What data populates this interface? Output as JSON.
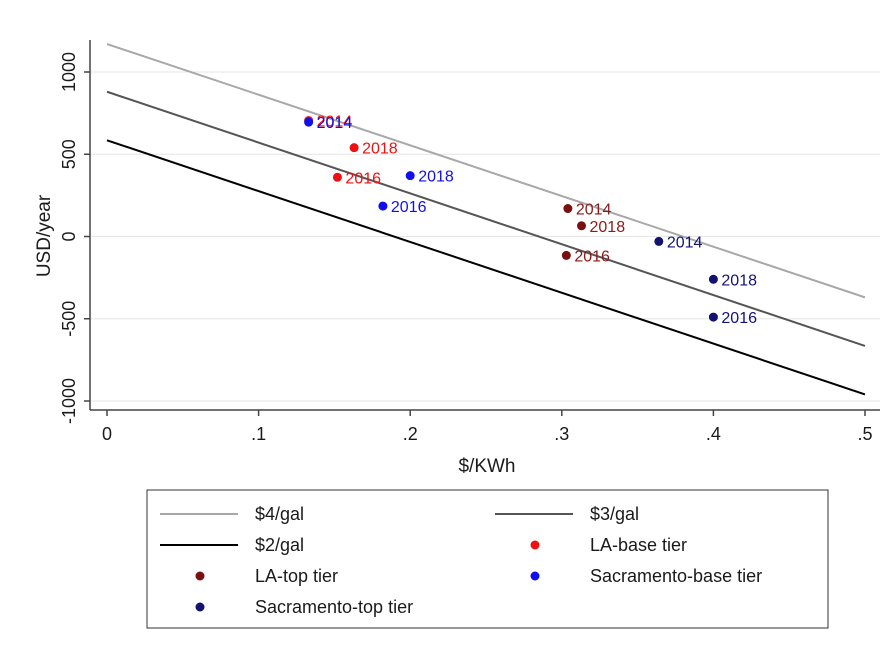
{
  "chart_data": {
    "type": "scatter",
    "xlabel": "$/KWh",
    "ylabel": "USD/year",
    "xlim": [
      0,
      0.5
    ],
    "ylim": [
      -1000,
      1200
    ],
    "xticks": [
      0,
      0.1,
      0.2,
      0.3,
      0.4,
      0.5
    ],
    "xtick_labels": [
      "0",
      ".1",
      ".2",
      ".3",
      ".4",
      ".5"
    ],
    "yticks": [
      -1000,
      -500,
      0,
      500,
      1000
    ],
    "ytick_labels": [
      "-1000",
      "-500",
      "0",
      "500",
      "1000"
    ],
    "grid": "horizontal",
    "legend_position": "bottom",
    "lines": [
      {
        "name": "$4/gal",
        "color": "#a8a8a8",
        "x": [
          0,
          0.5
        ],
        "y": [
          1170,
          -370
        ]
      },
      {
        "name": "$3/gal",
        "color": "#555555",
        "x": [
          0,
          0.5
        ],
        "y": [
          880,
          -665
        ]
      },
      {
        "name": "$2/gal",
        "color": "#000000",
        "x": [
          0,
          0.5
        ],
        "y": [
          585,
          -960
        ]
      }
    ],
    "series": [
      {
        "name": "LA-base tier",
        "color": "#ee1111",
        "label_color": "#ee1111",
        "points": [
          {
            "x": 0.133,
            "y": 705,
            "label": "2014"
          },
          {
            "x": 0.163,
            "y": 540,
            "label": "2018"
          },
          {
            "x": 0.152,
            "y": 360,
            "label": "2016"
          }
        ]
      },
      {
        "name": "LA-top tier",
        "color": "#7a1010",
        "label_color": "#8b1a1a",
        "points": [
          {
            "x": 0.304,
            "y": 170,
            "label": "2014"
          },
          {
            "x": 0.313,
            "y": 65,
            "label": "2018"
          },
          {
            "x": 0.303,
            "y": -115,
            "label": "2016"
          }
        ]
      },
      {
        "name": "Sacramento-base tier",
        "color": "#1010ee",
        "label_color": "#1010ee",
        "points": [
          {
            "x": 0.133,
            "y": 695,
            "label": "2014"
          },
          {
            "x": 0.2,
            "y": 370,
            "label": "2018"
          },
          {
            "x": 0.182,
            "y": 185,
            "label": "2016"
          }
        ]
      },
      {
        "name": "Sacramento-top tier",
        "color": "#121270",
        "label_color": "#12127a",
        "points": [
          {
            "x": 0.364,
            "y": -30,
            "label": "2014"
          },
          {
            "x": 0.4,
            "y": -260,
            "label": "2018"
          },
          {
            "x": 0.4,
            "y": -490,
            "label": "2016"
          }
        ]
      }
    ],
    "legend_order": [
      "$4/gal",
      "$3/gal",
      "$2/gal",
      "LA-base tier",
      "LA-top tier",
      "Sacramento-base tier",
      "Sacramento-top tier"
    ]
  }
}
